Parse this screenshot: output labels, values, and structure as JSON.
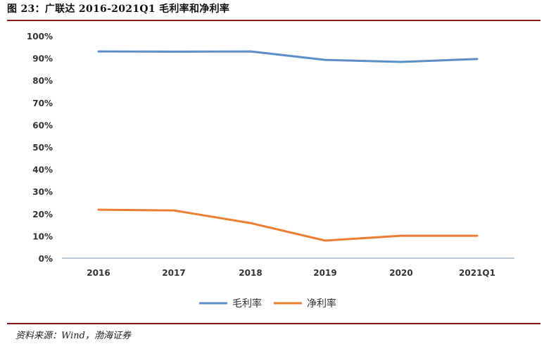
{
  "header": {
    "title": "图 23：广联达 2016-2021Q1 毛利率和净利率"
  },
  "footer": {
    "source": "资料来源：Wind，渤海证券"
  },
  "colors": {
    "gross": "#5b8fc9",
    "net": "#ed7d31",
    "rule": "#8b1a1a",
    "axis": "#a5b5c5"
  },
  "chart_data": {
    "type": "line",
    "title": "广联达 2016-2021Q1 毛利率和净利率",
    "xlabel": "",
    "ylabel": "",
    "categories": [
      "2016",
      "2017",
      "2018",
      "2019",
      "2020",
      "2021Q1"
    ],
    "yticks": [
      "0%",
      "10%",
      "20%",
      "30%",
      "40%",
      "50%",
      "60%",
      "70%",
      "80%",
      "90%",
      "100%"
    ],
    "ylim": [
      0,
      100
    ],
    "grid": false,
    "legend_position": "bottom",
    "series": [
      {
        "name": "毛利率",
        "color": "#5b8fc9",
        "values": [
          93.0,
          92.9,
          93.0,
          89.2,
          88.3,
          89.6
        ]
      },
      {
        "name": "净利率",
        "color": "#ed7d31",
        "values": [
          21.8,
          21.5,
          15.8,
          7.9,
          10.1,
          10.1
        ]
      }
    ]
  }
}
